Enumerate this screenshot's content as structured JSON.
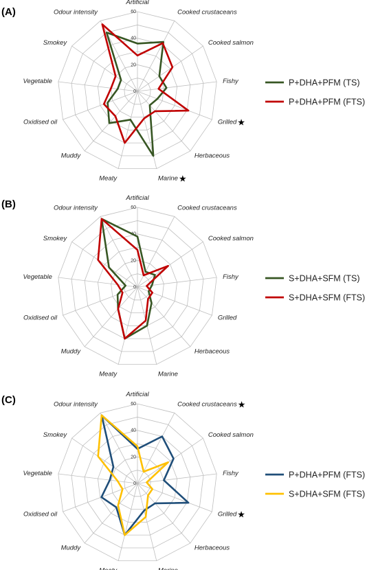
{
  "chart_data": [
    {
      "type": "radar",
      "panel_label": "(A)",
      "axes": [
        {
          "label": "Artificial",
          "star": false
        },
        {
          "label": "Cooked crustaceans",
          "star": false
        },
        {
          "label": "Cooked salmon",
          "star": false
        },
        {
          "label": "Fishy",
          "star": false
        },
        {
          "label": "Grilled",
          "star": true
        },
        {
          "label": "Herbaceous",
          "star": false
        },
        {
          "label": "Marine",
          "star": true
        },
        {
          "label": "Meaty",
          "star": false
        },
        {
          "label": "Muddy",
          "star": false
        },
        {
          "label": "Oxidised oil",
          "star": false
        },
        {
          "label": "Vegetable",
          "star": false
        },
        {
          "label": "Smokey",
          "star": false
        },
        {
          "label": "Odour intensity",
          "star": false
        }
      ],
      "ticks": [
        "0",
        "20",
        "40",
        "60"
      ],
      "rmax": 60,
      "series": [
        {
          "name": "P+DHA+PFM (TS)",
          "color": "#375623",
          "values": [
            36,
            42,
            20,
            22,
            16,
            14,
            50,
            22,
            32,
            24,
            15,
            15,
            50
          ]
        },
        {
          "name": "P+DHA+PFM (FTS)",
          "color": "#c00000",
          "values": [
            27,
            41,
            32,
            16,
            41,
            20,
            21,
            40,
            25,
            27,
            20,
            20,
            57
          ]
        }
      ]
    },
    {
      "type": "radar",
      "panel_label": "(B)",
      "axes": [
        {
          "label": "Artificial",
          "star": false
        },
        {
          "label": "Cooked crustaceans",
          "star": false
        },
        {
          "label": "Cooked salmon",
          "star": false
        },
        {
          "label": "Fishy",
          "star": false
        },
        {
          "label": "Grilled",
          "star": false
        },
        {
          "label": "Herbaceous",
          "star": false
        },
        {
          "label": "Marine",
          "star": false
        },
        {
          "label": "Meaty",
          "star": false
        },
        {
          "label": "Muddy",
          "star": false
        },
        {
          "label": "Oxidised oil",
          "star": false
        },
        {
          "label": "Vegetable",
          "star": false
        },
        {
          "label": "Smokey",
          "star": false
        },
        {
          "label": "Odour intensity",
          "star": false
        }
      ],
      "ticks": [
        "0",
        "20",
        "40",
        "60"
      ],
      "rmax": 60,
      "series": [
        {
          "name": "S+DHA+SFM (TS)",
          "color": "#375623",
          "values": [
            38,
            13,
            16,
            11,
            9,
            16,
            30,
            40,
            22,
            16,
            9,
            26,
            58
          ]
        },
        {
          "name": "S+DHA+SFM (FTS)",
          "color": "#c00000",
          "values": [
            28,
            10,
            28,
            7,
            12,
            12,
            26,
            40,
            22,
            12,
            15,
            36,
            58
          ]
        }
      ]
    },
    {
      "type": "radar",
      "panel_label": "(C)",
      "axes": [
        {
          "label": "Artificial",
          "star": false
        },
        {
          "label": "Cooked crustaceans",
          "star": true
        },
        {
          "label": "Cooked salmon",
          "star": false
        },
        {
          "label": "Fishy",
          "star": false
        },
        {
          "label": "Grilled",
          "star": true
        },
        {
          "label": "Herbaceous",
          "star": false
        },
        {
          "label": "Marine",
          "star": false
        },
        {
          "label": "Meaty",
          "star": false
        },
        {
          "label": "Muddy",
          "star": false
        },
        {
          "label": "Oxidised oil",
          "star": false
        },
        {
          "label": "Vegetable",
          "star": false
        },
        {
          "label": "Smokey",
          "star": false
        },
        {
          "label": "Odour intensity",
          "star": false
        }
      ],
      "ticks": [
        "0",
        "20",
        "40",
        "60"
      ],
      "rmax": 60,
      "series": [
        {
          "name": "P+DHA+PFM (FTS)",
          "color": "#1f4e79",
          "values": [
            26,
            40,
            33,
            20,
            41,
            20,
            21,
            40,
            24,
            29,
            21,
            22,
            58
          ]
        },
        {
          "name": "S+DHA+SFM (FTS)",
          "color": "#ffc000",
          "values": [
            28,
            10,
            28,
            7,
            12,
            12,
            26,
            40,
            22,
            12,
            15,
            36,
            58
          ]
        }
      ]
    }
  ]
}
